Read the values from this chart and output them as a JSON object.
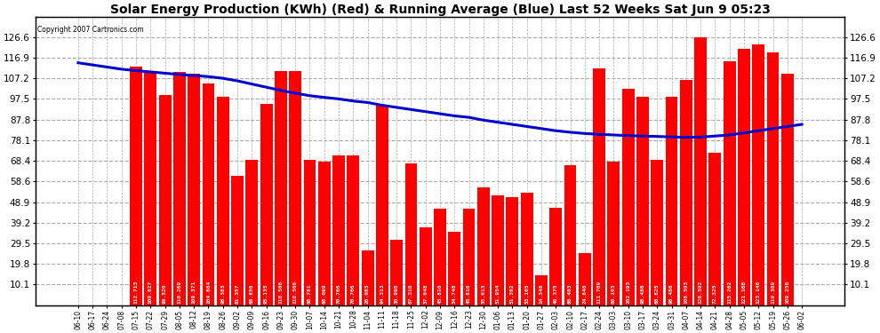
{
  "title": "Solar Energy Production (KWh) (Red) & Running Average (Blue) Last 52 Weeks Sat Jun 9 05:23",
  "copyright": "Copyright 2007 Cartronics.com",
  "bar_color": "#ff0000",
  "avg_color": "#0000cc",
  "bg_color": "#ffffff",
  "grid_color": "#aaaaaa",
  "yticks": [
    10.1,
    19.8,
    29.5,
    39.2,
    48.9,
    58.6,
    68.4,
    78.1,
    87.8,
    97.5,
    107.2,
    116.9,
    126.6
  ],
  "categories": [
    "06-10",
    "06-17",
    "06-24",
    "07-08",
    "07-15",
    "07-22",
    "07-29",
    "08-05",
    "08-12",
    "08-19",
    "08-26",
    "09-02",
    "09-09",
    "09-16",
    "09-23",
    "09-30",
    "10-07",
    "10-14",
    "10-21",
    "10-28",
    "11-04",
    "11-11",
    "11-18",
    "11-25",
    "12-02",
    "12-09",
    "12-16",
    "12-23",
    "12-30",
    "01-06",
    "01-13",
    "01-20",
    "01-27",
    "02-03",
    "02-10",
    "02-17",
    "02-24",
    "03-03",
    "03-10",
    "03-17",
    "03-24",
    "03-31",
    "04-07",
    "04-14",
    "04-21",
    "04-28",
    "05-05",
    "05-12",
    "05-19",
    "05-26",
    "06-02"
  ],
  "values": [
    0.0,
    0.0,
    0.0,
    0.0,
    112.713,
    109.627,
    99.52,
    110.269,
    109.371,
    104.664,
    98.383,
    61.357,
    68.856,
    95.135,
    110.506,
    110.506,
    68.781,
    68.099,
    70.706,
    70.706,
    26.085,
    94.313,
    30.998,
    67.316,
    37.048,
    45.816,
    34.748,
    45.816,
    55.613,
    51.954,
    51.392,
    53.165,
    14.346,
    46.375,
    66.403,
    24.846,
    111.709,
    68.103,
    102.193,
    98.486,
    68.825,
    98.486,
    106.593,
    126.592,
    72.325,
    115.262,
    121.168,
    123.148,
    119.389,
    109.258,
    0.0
  ],
  "running_avg": [
    114.5,
    113.5,
    112.5,
    111.5,
    110.8,
    110.2,
    109.6,
    109.0,
    108.5,
    108.0,
    107.2,
    106.0,
    104.5,
    103.0,
    101.5,
    100.2,
    99.0,
    98.2,
    97.5,
    96.5,
    95.8,
    94.5,
    93.5,
    92.5,
    91.5,
    90.5,
    89.5,
    88.8,
    87.5,
    86.5,
    85.5,
    84.5,
    83.5,
    82.5,
    81.8,
    81.2,
    80.8,
    80.5,
    80.2,
    80.0,
    79.8,
    79.6,
    79.4,
    79.5,
    80.0,
    80.5,
    81.5,
    82.5,
    83.5,
    84.5,
    85.5
  ],
  "ylim_max": 136,
  "bar_width": 0.85,
  "label_fontsize": 4.5,
  "title_fontsize": 10,
  "tick_fontsize": 7.5,
  "xtick_fontsize": 5.5
}
